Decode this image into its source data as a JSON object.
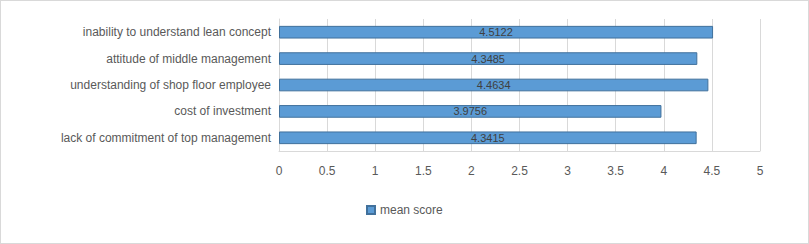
{
  "chart_data": {
    "type": "bar",
    "orientation": "horizontal",
    "categories": [
      "lack of commitment of top management",
      "cost of investment",
      "understanding of shop floor employee",
      "attitude of middle management",
      "inability to understand lean concept"
    ],
    "series": [
      {
        "name": "mean score",
        "color": "#5b9bd5",
        "values": [
          4.3415,
          3.9756,
          4.4634,
          4.3485,
          4.5122
        ]
      }
    ],
    "xlim": [
      0,
      5
    ],
    "xticks": [
      0,
      0.5,
      1,
      1.5,
      2,
      2.5,
      3,
      3.5,
      4,
      4.5,
      5
    ],
    "grid": true,
    "legend": "bottom",
    "data_labels": true
  }
}
